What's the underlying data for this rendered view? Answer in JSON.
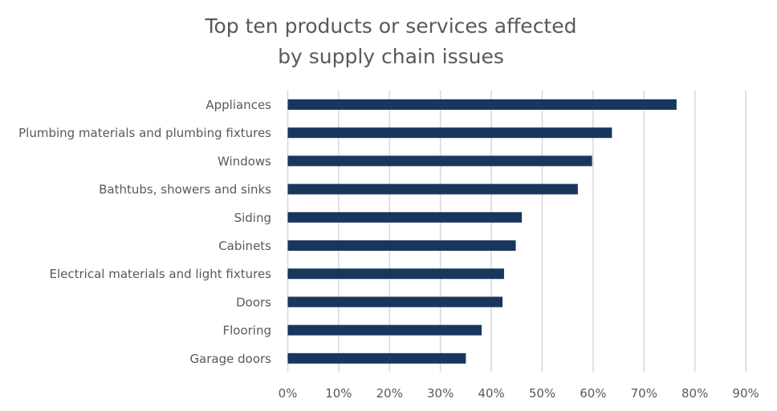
{
  "chart_data": {
    "type": "bar",
    "orientation": "horizontal",
    "title": "Top ten products or services affected by supply chain issues",
    "title_lines": [
      "Top ten products or services affected",
      "by supply chain issues"
    ],
    "xlabel": "",
    "ylabel": "",
    "categories": [
      "Appliances",
      "Plumbing materials and plumbing fixtures",
      "Windows",
      "Bathtubs, showers and sinks",
      "Siding",
      "Cabinets",
      "Electrical materials and light fixtures",
      "Doors",
      "Flooring",
      "Garage doors"
    ],
    "values": [
      76.4,
      63.7,
      59.8,
      57.0,
      46.0,
      44.8,
      42.5,
      42.2,
      38.1,
      35.0
    ],
    "value_unit": "%",
    "xlim": [
      0,
      90
    ],
    "x_ticks": [
      0,
      10,
      20,
      30,
      40,
      50,
      60,
      70,
      80,
      90
    ],
    "x_tick_labels": [
      "0%",
      "10%",
      "20%",
      "30%",
      "40%",
      "50%",
      "60%",
      "70%",
      "80%",
      "90%"
    ],
    "grid": "vertical",
    "legend": "none",
    "bar_color": "#17375E",
    "grid_color": "#D9D9D9",
    "text_color": "#595959"
  }
}
